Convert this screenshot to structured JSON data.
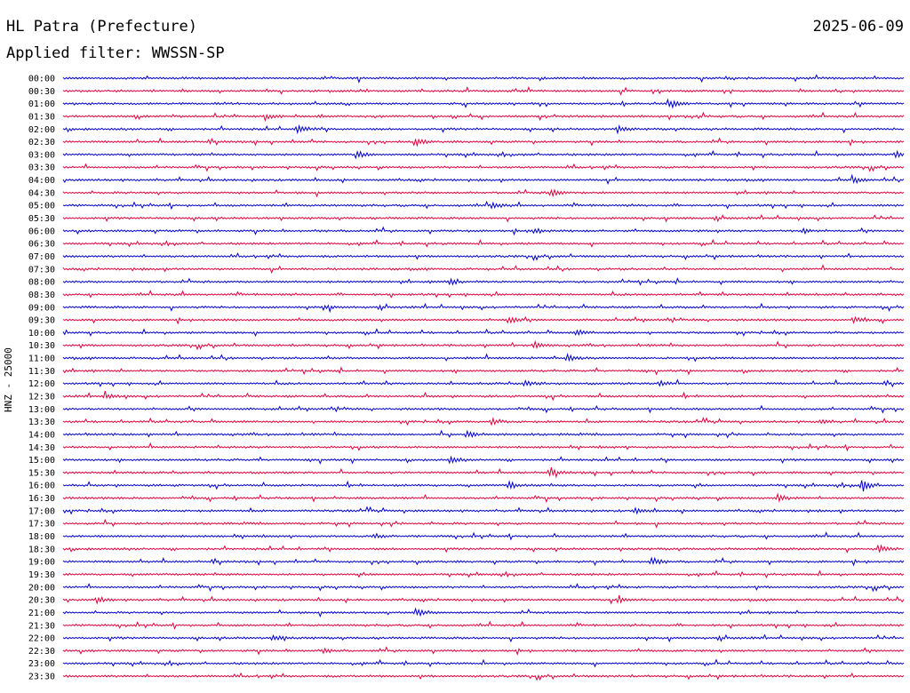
{
  "header": {
    "station": "HL Patra (Prefecture)",
    "date": "2025-06-09",
    "filter": "Applied filter: WWSSN-SP"
  },
  "chart_data": {
    "type": "line",
    "title": "HL Patra (Prefecture)",
    "subtitle": "Applied filter: WWSSN-SP",
    "ylabel": "HNZ - 25000",
    "date": "2025-06-09",
    "row_labels": [
      "00:00",
      "00:30",
      "01:00",
      "01:30",
      "02:00",
      "02:30",
      "03:00",
      "03:30",
      "04:00",
      "04:30",
      "05:00",
      "05:30",
      "06:00",
      "06:30",
      "07:00",
      "07:30",
      "08:00",
      "08:30",
      "09:00",
      "09:30",
      "10:00",
      "10:30",
      "11:00",
      "11:30",
      "12:00",
      "12:30",
      "13:00",
      "13:30",
      "14:00",
      "14:30",
      "15:00",
      "15:30",
      "16:00",
      "16:30",
      "17:00",
      "17:30",
      "18:00",
      "18:30",
      "19:00",
      "19:30",
      "20:00",
      "20:30",
      "21:00",
      "21:30",
      "22:00",
      "22:30",
      "23:00",
      "23:30"
    ],
    "colors": [
      "#0000cc",
      "#e0003c"
    ],
    "events": [
      {
        "row": "01:00",
        "t": 0.72,
        "amp": 1.0
      },
      {
        "row": "01:30",
        "t": 0.24,
        "amp": 0.5
      },
      {
        "row": "02:00",
        "t": 0.28,
        "amp": 0.8
      },
      {
        "row": "02:00",
        "t": 0.66,
        "amp": 0.5
      },
      {
        "row": "02:30",
        "t": 0.42,
        "amp": 0.5
      },
      {
        "row": "03:00",
        "t": 0.35,
        "amp": 0.5
      },
      {
        "row": "03:00",
        "t": 0.99,
        "amp": 0.5
      },
      {
        "row": "04:00",
        "t": 0.94,
        "amp": 0.5
      },
      {
        "row": "04:30",
        "t": 0.58,
        "amp": 0.6
      },
      {
        "row": "05:00",
        "t": 0.51,
        "amp": 0.5
      },
      {
        "row": "06:00",
        "t": 0.56,
        "amp": 0.5
      },
      {
        "row": "06:00",
        "t": 0.88,
        "amp": 0.4
      },
      {
        "row": "08:00",
        "t": 0.46,
        "amp": 0.5
      },
      {
        "row": "09:00",
        "t": 0.31,
        "amp": 0.4
      },
      {
        "row": "09:30",
        "t": 0.53,
        "amp": 0.6
      },
      {
        "row": "09:30",
        "t": 0.94,
        "amp": 0.4
      },
      {
        "row": "10:00",
        "t": 0.61,
        "amp": 0.5
      },
      {
        "row": "10:30",
        "t": 0.56,
        "amp": 0.6
      },
      {
        "row": "11:00",
        "t": 0.6,
        "amp": 0.5
      },
      {
        "row": "12:00",
        "t": 0.55,
        "amp": 0.5
      },
      {
        "row": "12:00",
        "t": 0.71,
        "amp": 0.5
      },
      {
        "row": "12:30",
        "t": 0.05,
        "amp": 0.5
      },
      {
        "row": "13:30",
        "t": 0.51,
        "amp": 0.5
      },
      {
        "row": "13:30",
        "t": 0.9,
        "amp": 0.4
      },
      {
        "row": "14:00",
        "t": 0.48,
        "amp": 0.5
      },
      {
        "row": "15:00",
        "t": 0.46,
        "amp": 0.5
      },
      {
        "row": "15:30",
        "t": 0.58,
        "amp": 0.5
      },
      {
        "row": "16:00",
        "t": 0.53,
        "amp": 0.6
      },
      {
        "row": "16:00",
        "t": 0.95,
        "amp": 1.0
      },
      {
        "row": "16:30",
        "t": 0.85,
        "amp": 0.5
      },
      {
        "row": "17:00",
        "t": 0.68,
        "amp": 0.5
      },
      {
        "row": "18:00",
        "t": 0.37,
        "amp": 0.4
      },
      {
        "row": "18:30",
        "t": 0.97,
        "amp": 0.6
      },
      {
        "row": "19:00",
        "t": 0.7,
        "amp": 0.6
      },
      {
        "row": "20:30",
        "t": 0.04,
        "amp": 0.5
      },
      {
        "row": "20:30",
        "t": 0.66,
        "amp": 0.5
      },
      {
        "row": "21:00",
        "t": 0.42,
        "amp": 0.7
      },
      {
        "row": "22:00",
        "t": 0.25,
        "amp": 0.5
      },
      {
        "row": "22:30",
        "t": 0.31,
        "amp": 0.3
      }
    ]
  }
}
